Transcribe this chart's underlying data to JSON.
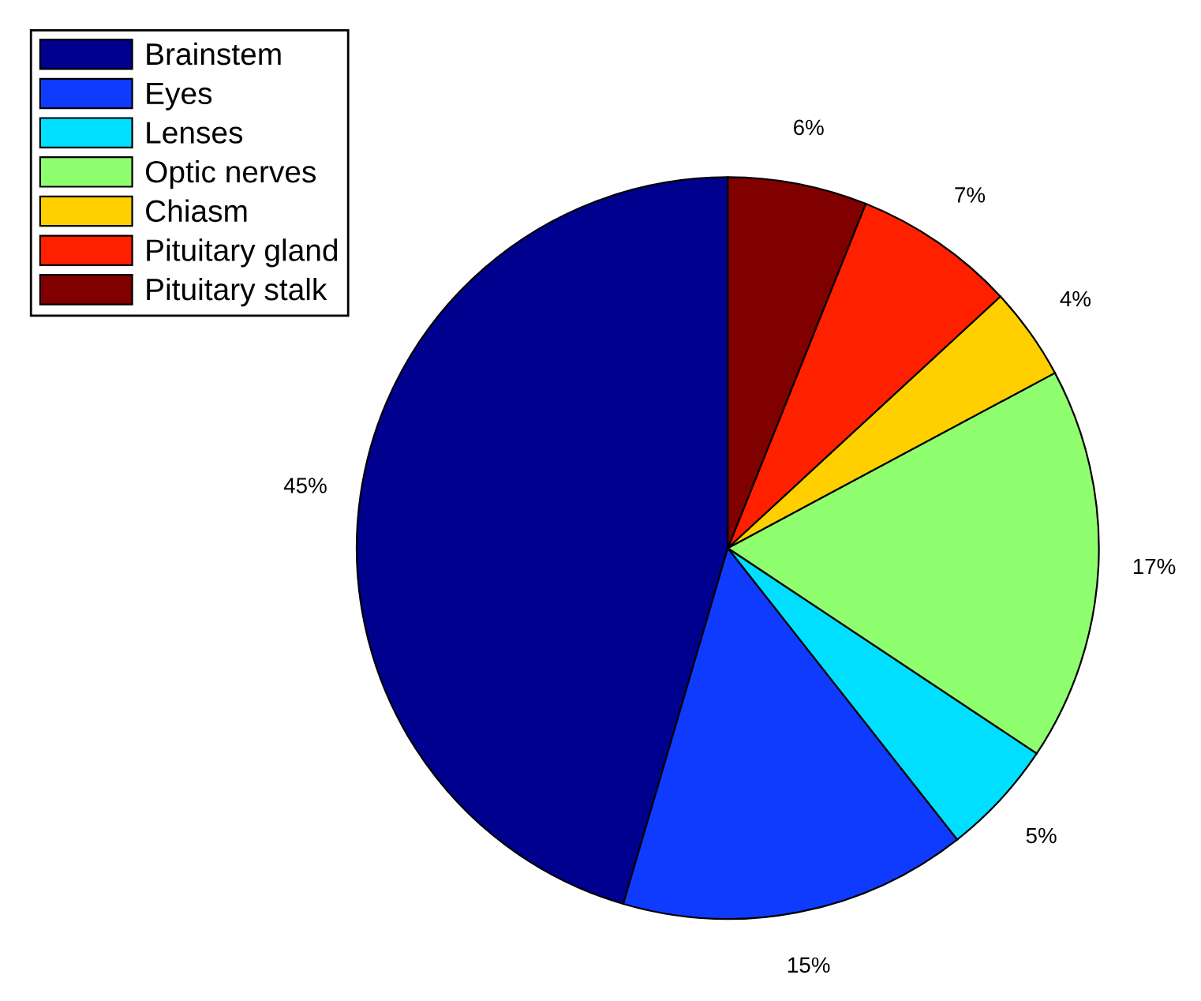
{
  "chart_data": {
    "type": "pie",
    "categories": [
      "Brainstem",
      "Eyes",
      "Lenses",
      "Optic nerves",
      "Chiasm",
      "Pituitary gland",
      "Pituitary stalk"
    ],
    "values": [
      45,
      15,
      5,
      17,
      4,
      7,
      6
    ],
    "value_labels": [
      "45%",
      "15%",
      "5%",
      "17%",
      "4%",
      "7%",
      "6%"
    ],
    "colors": [
      "#00008f",
      "#0f3bff",
      "#00dfff",
      "#8fff6f",
      "#ffcf00",
      "#ff2000",
      "#800000"
    ],
    "legend": "top left"
  }
}
